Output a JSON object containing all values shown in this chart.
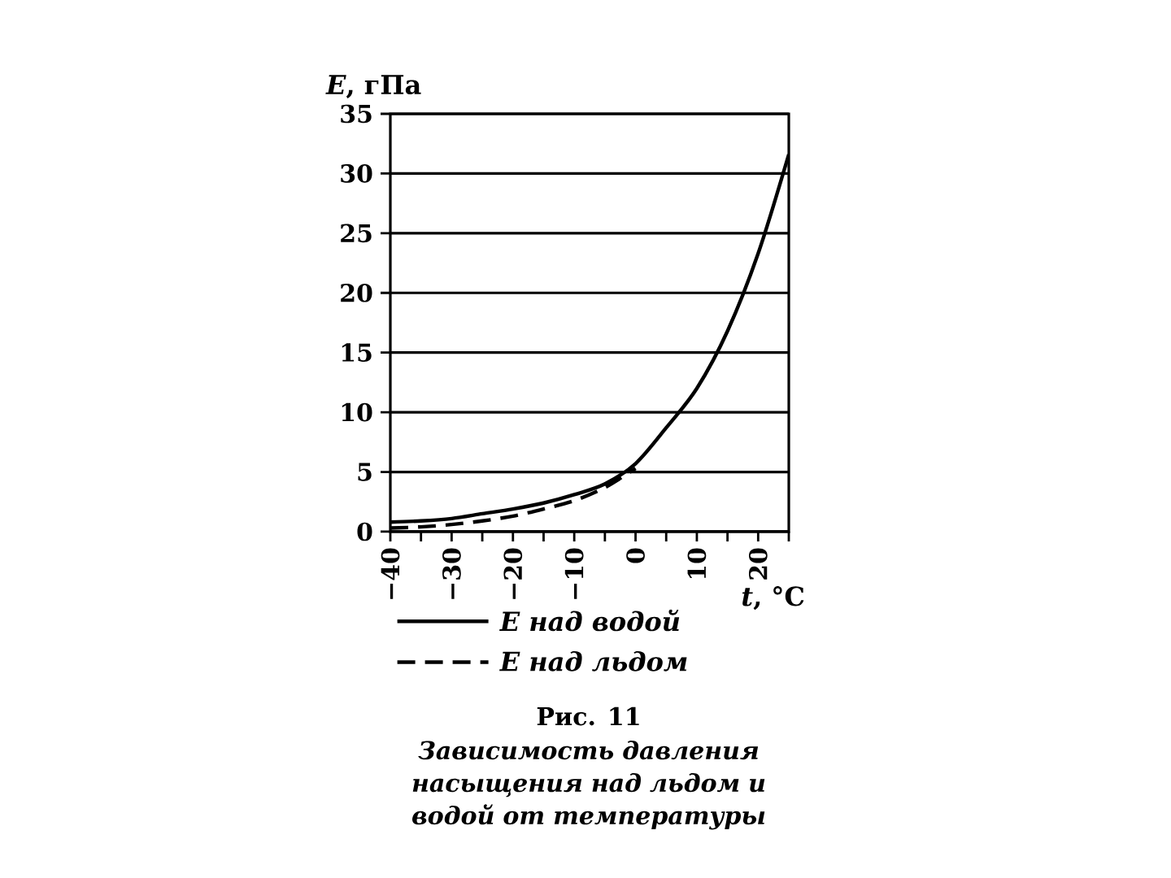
{
  "chart_data": {
    "type": "line",
    "title": "Рис. 11",
    "subtitle": "Зависимость давления насыщения над льдом и водой от температуры",
    "xlabel": "*t*, °C",
    "ylabel": "*E*, гПа",
    "xlim": [
      -40,
      25
    ],
    "xticks": [
      {
        "value": -40,
        "label": "−40"
      },
      {
        "value": -35,
        "label": null
      },
      {
        "value": -30,
        "label": "−30"
      },
      {
        "value": -25,
        "label": null
      },
      {
        "value": -20,
        "label": "−20"
      },
      {
        "value": -15,
        "label": null
      },
      {
        "value": -10,
        "label": "−10"
      },
      {
        "value": -5,
        "label": null
      },
      0,
      {
        "value": 5,
        "label": null
      },
      10,
      {
        "value": 15,
        "label": null
      },
      20,
      {
        "value": 25,
        "label": null
      }
    ],
    "ylim": [
      0,
      35
    ],
    "yticks": [
      0,
      5,
      10,
      15,
      20,
      25,
      30,
      35
    ],
    "grid": "y",
    "legend": "bottom",
    "marker": "none",
    "series": [
      {
        "name": "E над водой",
        "color": "#000000",
        "line_style": "solid",
        "x": [
          -40,
          -35,
          -30,
          -25,
          -20,
          -15,
          -10,
          -5,
          0,
          5,
          10,
          15,
          20,
          25
        ],
        "values": [
          0.8,
          0.9,
          1.1,
          1.5,
          1.9,
          2.4,
          3.1,
          4.0,
          5.7,
          8.7,
          12.0,
          16.8,
          23.3,
          31.6
        ]
      },
      {
        "name": "E над льдом",
        "color": "#000000",
        "line_style": "dashed",
        "x": [
          -40,
          -35,
          -30,
          -25,
          -20,
          -15,
          -10,
          -5,
          0
        ],
        "values": [
          0.3,
          0.4,
          0.6,
          0.9,
          1.3,
          1.9,
          2.6,
          3.7,
          5.3
        ]
      }
    ]
  }
}
